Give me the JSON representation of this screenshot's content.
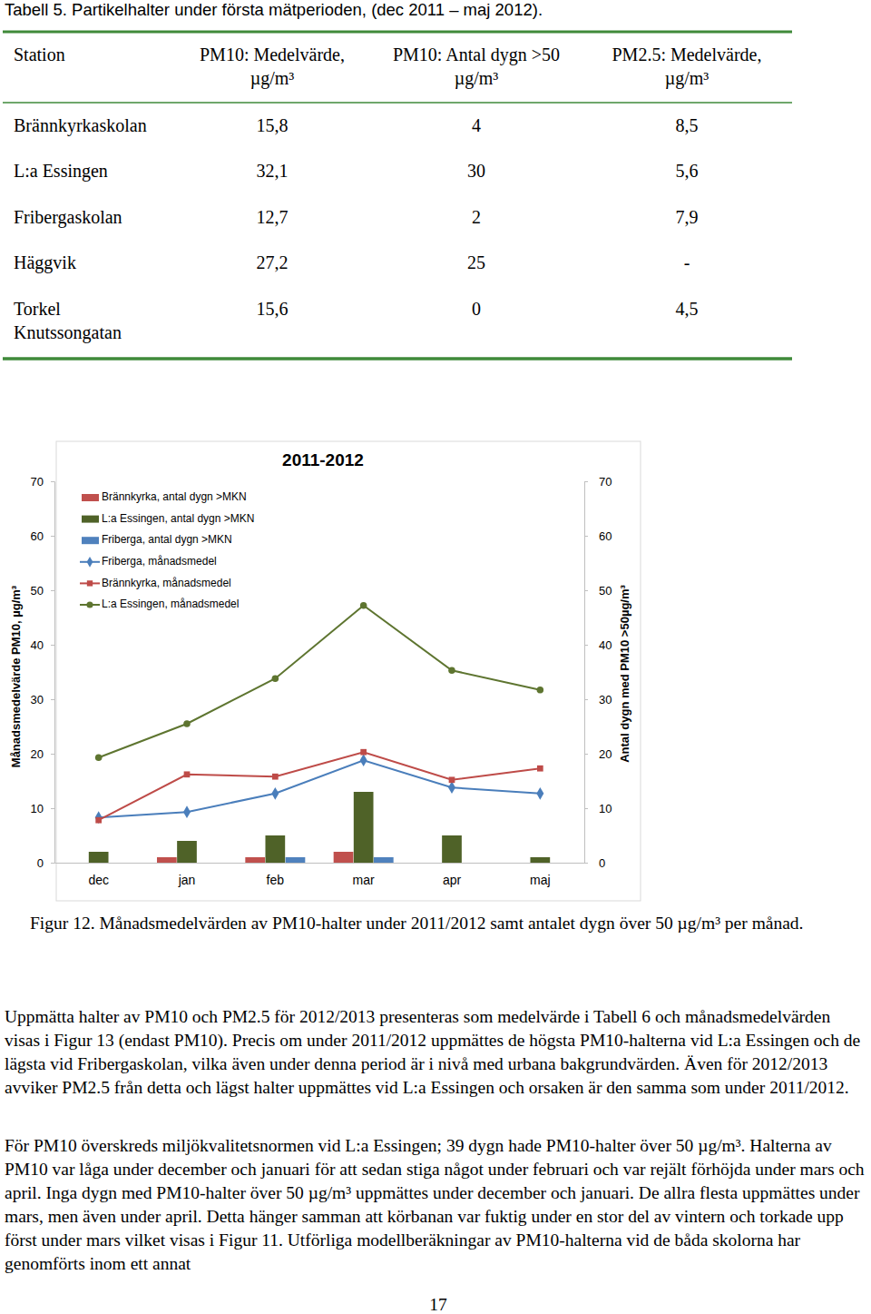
{
  "table": {
    "title": "Tabell 5. Partikelhalter under första mätperioden, (dec 2011 – maj 2012).",
    "columns": [
      [
        "Station"
      ],
      [
        "PM10: Medelvärde,",
        "µg/m³"
      ],
      [
        "PM10: Antal dygn >50",
        "µg/m³"
      ],
      [
        "PM2.5: Medelvärde,",
        "µg/m³"
      ]
    ],
    "rows": [
      [
        [
          "Brännkyrkaskolan"
        ],
        "15,8",
        "4",
        "8,5"
      ],
      [
        [
          "L:a Essingen"
        ],
        "32,1",
        "30",
        "5,6"
      ],
      [
        [
          "Fribergaskolan"
        ],
        "12,7",
        "2",
        "7,9"
      ],
      [
        [
          "Häggvik"
        ],
        "27,2",
        "25",
        "-"
      ],
      [
        [
          "Torkel",
          "Knutssongatan"
        ],
        "15,6",
        "0",
        "4,5"
      ]
    ]
  },
  "chart_data": {
    "type": "combo",
    "title": "2011-2012",
    "categories": [
      "dec",
      "jan",
      "feb",
      "mar",
      "apr",
      "maj"
    ],
    "ylabel": "Månadsmedelvärde PM10, µg/m³",
    "y2label": "Antal dygn med PM10 >50µg/m³",
    "ylim": [
      0,
      70
    ],
    "yticks": [
      0,
      10,
      20,
      30,
      40,
      50,
      60,
      70
    ],
    "y2lim": [
      0,
      70
    ],
    "y2ticks": [
      0,
      10,
      20,
      30,
      40,
      50,
      60,
      70
    ],
    "legend": "upper left",
    "series": [
      {
        "name": "Brännkyrka, antal dygn >MKN",
        "type": "bar",
        "axis": "y2",
        "color": "#c0504d",
        "values": [
          0,
          1,
          1,
          2,
          0,
          0
        ]
      },
      {
        "name": "L:a Essingen, antal dygn >MKN",
        "type": "bar",
        "axis": "y2",
        "color": "#4f6228",
        "values": [
          2,
          4,
          5,
          13,
          5,
          1
        ]
      },
      {
        "name": "Friberga, antal dygn >MKN",
        "type": "bar",
        "axis": "y2",
        "color": "#4f81bd",
        "values": [
          0,
          0,
          1,
          1,
          0,
          0
        ]
      },
      {
        "name": "Friberga, månadsmedel",
        "type": "line",
        "marker": "diamond",
        "color": "#4a7ebb",
        "values": [
          8.3,
          9.3,
          12.7,
          18.8,
          13.8,
          12.7
        ]
      },
      {
        "name": "Brännkyrka, månadsmedel",
        "type": "line",
        "marker": "square",
        "color": "#be4b48",
        "values": [
          7.8,
          16.2,
          15.8,
          20.3,
          15.2,
          17.3
        ]
      },
      {
        "name": "L:a Essingen, månadsmedel",
        "type": "line",
        "marker": "circle",
        "color": "#5e7530",
        "values": [
          19.3,
          25.5,
          33.8,
          47.2,
          35.3,
          31.7
        ]
      }
    ]
  },
  "caption": "Figur 12. Månadsmedelvärden av PM10-halter under 2011/2012 samt antalet dygn över 50 µg/m³ per månad.",
  "paragraphs": [
    "Uppmätta halter av PM10 och PM2.5 för 2012/2013 presenteras som medelvärde i Tabell 6 och månadsmedelvärden visas i Figur 13 (endast PM10). Precis om under 2011/2012 uppmättes de högsta PM10-halterna vid L:a Essingen och de lägsta vid Fribergaskolan, vilka även under denna period är i nivå med urbana bakgrundvärden. Även för 2012/2013 avviker PM2.5 från detta och lägst halter uppmättes vid L:a Essingen och orsaken är den samma som under 2011/2012.",
    "För PM10 överskreds miljökvalitetsnormen vid L:a Essingen; 39 dygn hade PM10-halter över 50 µg/m³. Halterna av PM10 var låga under december och januari för att sedan stiga något under februari och var rejält förhöjda under mars och april. Inga dygn med PM10-halter över 50 µg/m³ uppmättes under december och januari. De allra flesta uppmättes under mars, men även under april. Detta hänger samman att körbanan var fuktig under en stor del av vintern och torkade upp först under mars vilket visas i Figur 11. Utförliga modellberäkningar av PM10-halterna vid de båda skolorna har genomförts inom ett annat"
  ],
  "page_number": "17"
}
